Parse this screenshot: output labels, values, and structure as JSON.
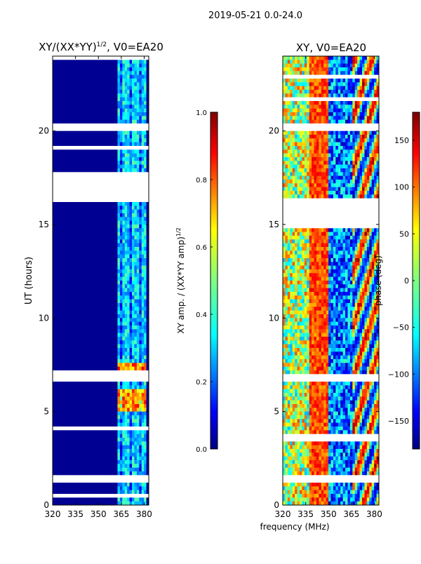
{
  "suptitle": "2019-05-21 0.0-24.0",
  "colors": {
    "frame": "#000000",
    "gap": "#ffffff",
    "background_low": "#00007f",
    "jet": [
      "#00007f",
      "#0000ff",
      "#007fff",
      "#00ffff",
      "#7fff7f",
      "#ffff00",
      "#ff7f00",
      "#ff0000",
      "#7f0000"
    ]
  },
  "chart_data": [
    {
      "id": "amp-ratio",
      "type": "heatmap",
      "title": "XY/(XX*YY)^1/2, V0=EA20",
      "title_main": "XY/(XX*YY)",
      "title_sup": "1/2",
      "title_tail": ", V0=EA20",
      "xlabel": "",
      "ylabel": "UT (hours)",
      "xlim": [
        320,
        383
      ],
      "ylim": [
        0,
        24
      ],
      "xticks": [
        320,
        335,
        350,
        365,
        380
      ],
      "yticks": [
        0,
        5,
        10,
        15,
        20
      ],
      "colorbar": {
        "label": "XY amp. / (XX*YY amp)^1/2",
        "label_main": "XY amp. / (XX*YY amp)",
        "label_sup": "1/2",
        "range": [
          0.0,
          1.0
        ],
        "ticks": [
          "0.0",
          "0.2",
          "0.4",
          "0.6",
          "0.8",
          "1.0"
        ]
      },
      "gaps_hours": [
        [
          16.3,
          17.6
        ],
        [
          6.6,
          6.9
        ],
        [
          1.3,
          1.55
        ],
        [
          20.1,
          20.35
        ],
        [
          23.9,
          24.0
        ]
      ],
      "bright_band_mhz": [
        362,
        381
      ],
      "bright_hours": [
        [
          5.0,
          6.1
        ],
        [
          7.0,
          7.5
        ]
      ],
      "bright_value": 0.75,
      "band_value": 0.35,
      "background_value": 0.02
    },
    {
      "id": "xy-phase",
      "type": "heatmap",
      "title": "XY, V0=EA20",
      "xlabel": "frequency (MHz)",
      "ylabel": "",
      "xlim": [
        320,
        383
      ],
      "ylim": [
        0,
        24
      ],
      "xticks": [
        320,
        335,
        350,
        365,
        380
      ],
      "yticks": [
        0,
        5,
        10,
        15,
        20
      ],
      "colorbar": {
        "label": "phase (deg)",
        "range": [
          -180,
          180
        ],
        "ticks": [
          "150",
          "100",
          "50",
          "0",
          "−50",
          "−100",
          "−150"
        ],
        "tick_values": [
          150,
          100,
          50,
          0,
          -50,
          -100,
          -150
        ]
      },
      "gaps_hours": [
        [
          15.0,
          16.3
        ],
        [
          6.6,
          6.9
        ],
        [
          1.3,
          1.55
        ],
        [
          20.1,
          20.35
        ]
      ],
      "red_band_mhz": [
        338,
        350
      ],
      "phase_values_deg": [
        -180,
        -90,
        0,
        90,
        180
      ]
    }
  ]
}
